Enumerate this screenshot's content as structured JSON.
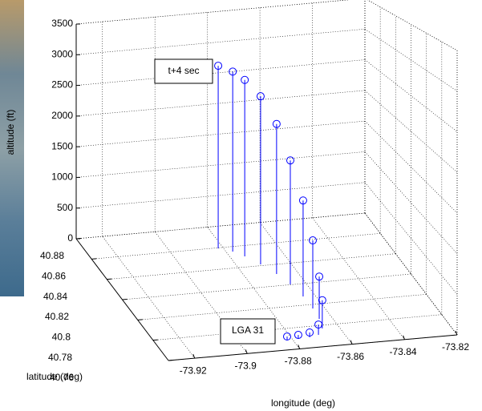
{
  "chart_data": {
    "type": "stem3",
    "xlabel": "longitude (deg)",
    "ylabel": "latitude (deg)",
    "zlabel": "altitude (ft)",
    "annotations": [
      "t+4 sec",
      "LGA 31"
    ],
    "color": "#0000ff",
    "grid": true,
    "xlim": [
      -73.93,
      -73.82
    ],
    "xticks": [
      -73.92,
      -73.9,
      -73.88,
      -73.86,
      -73.84,
      -73.82
    ],
    "ylim": [
      40.76,
      40.88
    ],
    "yticks": [
      40.76,
      40.78,
      40.8,
      40.82,
      40.84,
      40.86,
      40.88
    ],
    "zlim": [
      0,
      3500
    ],
    "zticks": [
      0,
      500,
      1000,
      1500,
      2000,
      2500,
      3000,
      3500
    ],
    "x": [
      -73.882,
      -73.8778,
      -73.8733,
      -73.8695,
      -73.8664,
      -73.8649,
      -73.8644,
      -73.8646,
      -73.8659,
      -73.868,
      -73.8711,
      -73.8746,
      -73.8776,
      -73.8819
    ],
    "y": [
      40.7695,
      40.7693,
      40.7699,
      40.7714,
      40.777,
      40.7861,
      40.7962,
      40.8081,
      40.8203,
      40.831,
      40.8412,
      40.8499,
      40.8553,
      40.8595
    ],
    "z": [
      40,
      50,
      60,
      130,
      360,
      550,
      905,
      1310,
      1740,
      2160,
      2480,
      2660,
      2750,
      2820
    ]
  }
}
